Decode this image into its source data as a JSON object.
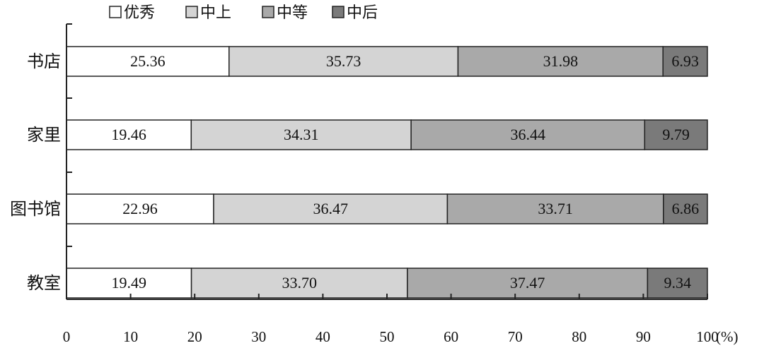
{
  "chart_data": {
    "type": "bar",
    "orientation": "horizontal",
    "stacked": true,
    "categories": [
      "书店",
      "家里",
      "图书馆",
      "教室"
    ],
    "series": [
      {
        "name": "优秀",
        "color": "#ffffff",
        "values": [
          25.36,
          19.46,
          22.96,
          19.49
        ]
      },
      {
        "name": "中上",
        "color": "#d4d4d4",
        "values": [
          35.73,
          34.31,
          36.47,
          33.7
        ]
      },
      {
        "name": "中等",
        "color": "#a9a9a9",
        "values": [
          31.98,
          36.44,
          33.71,
          37.47
        ]
      },
      {
        "name": "中后",
        "color": "#7a7a7a",
        "values": [
          6.93,
          9.79,
          6.86,
          9.34
        ]
      }
    ],
    "value_labels": [
      [
        "25.36",
        "35.73",
        "31.98",
        "6.93"
      ],
      [
        "19.46",
        "34.31",
        "36.44",
        "9.79"
      ],
      [
        "22.96",
        "36.47",
        "33.71",
        "6.86"
      ],
      [
        "19.49",
        "33.70",
        "37.47",
        "9.34"
      ]
    ],
    "x_ticks": [
      "0",
      "10",
      "20",
      "30",
      "40",
      "50",
      "60",
      "70",
      "80",
      "90",
      "100"
    ],
    "xlim": [
      0,
      100
    ],
    "x_unit": "(%)",
    "legend_position": "top",
    "grid": false
  }
}
